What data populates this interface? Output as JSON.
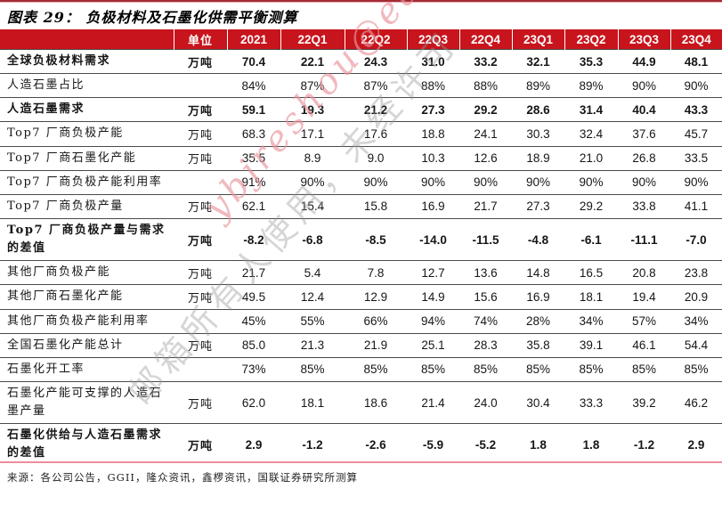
{
  "title": "图表 29： 负极材料及石墨化供需平衡测算",
  "source": "来源：各公司公告，GGII，隆众资讯，鑫椤资讯，国联证券研究所测算",
  "watermark": {
    "email": "ybjreshou@ea",
    "chinese": "邮箱所有人使用，未经许可"
  },
  "colors": {
    "header_red": "#C8141C",
    "rule_dark_red": "#A22C35",
    "rule_pink": "#F08DA0"
  },
  "table": {
    "unit_header": "单位",
    "period_headers": [
      "2021",
      "22Q1",
      "22Q2",
      "22Q3",
      "22Q4",
      "23Q1",
      "23Q2",
      "23Q3",
      "23Q4"
    ],
    "rows": [
      {
        "label": "全球负极材料需求",
        "unit": "万吨",
        "bold": true,
        "tall": false,
        "values": [
          "70.4",
          "22.1",
          "24.3",
          "31.0",
          "33.2",
          "32.1",
          "35.3",
          "44.9",
          "48.1"
        ]
      },
      {
        "label": "人造石墨占比",
        "unit": "",
        "bold": false,
        "tall": false,
        "values": [
          "84%",
          "87%",
          "87%",
          "88%",
          "88%",
          "89%",
          "89%",
          "90%",
          "90%"
        ]
      },
      {
        "label": "人造石墨需求",
        "unit": "万吨",
        "bold": true,
        "tall": false,
        "values": [
          "59.1",
          "19.3",
          "21.2",
          "27.3",
          "29.2",
          "28.6",
          "31.4",
          "40.4",
          "43.3"
        ]
      },
      {
        "label": "Top7 厂商负极产能",
        "unit": "万吨",
        "bold": false,
        "tall": false,
        "values": [
          "68.3",
          "17.1",
          "17.6",
          "18.8",
          "24.1",
          "30.3",
          "32.4",
          "37.6",
          "45.7"
        ]
      },
      {
        "label": "Top7 厂商石墨化产能",
        "unit": "万吨",
        "bold": false,
        "tall": false,
        "values": [
          "35.5",
          "8.9",
          "9.0",
          "10.3",
          "12.6",
          "18.9",
          "21.0",
          "26.8",
          "33.5"
        ]
      },
      {
        "label": "Top7 厂商负极产能利用率",
        "unit": "",
        "bold": false,
        "tall": false,
        "values": [
          "91%",
          "90%",
          "90%",
          "90%",
          "90%",
          "90%",
          "90%",
          "90%",
          "90%"
        ]
      },
      {
        "label": "Top7 厂商负极产量",
        "unit": "万吨",
        "bold": false,
        "tall": false,
        "values": [
          "62.1",
          "15.4",
          "15.8",
          "16.9",
          "21.7",
          "27.3",
          "29.2",
          "33.8",
          "41.1"
        ]
      },
      {
        "label": "Top7 厂商负极产量与需求的差值",
        "unit": "万吨",
        "bold": true,
        "tall": true,
        "values": [
          "-8.2",
          "-6.8",
          "-8.5",
          "-14.0",
          "-11.5",
          "-4.8",
          "-6.1",
          "-11.1",
          "-7.0"
        ]
      },
      {
        "label": "其他厂商负极产能",
        "unit": "万吨",
        "bold": false,
        "tall": false,
        "values": [
          "21.7",
          "5.4",
          "7.8",
          "12.7",
          "13.6",
          "14.8",
          "16.5",
          "20.8",
          "23.8"
        ]
      },
      {
        "label": "其他厂商石墨化产能",
        "unit": "万吨",
        "bold": false,
        "tall": false,
        "values": [
          "49.5",
          "12.4",
          "12.9",
          "14.9",
          "15.6",
          "16.9",
          "18.1",
          "19.4",
          "20.9"
        ]
      },
      {
        "label": "其他厂商负极产能利用率",
        "unit": "",
        "bold": false,
        "tall": false,
        "values": [
          "45%",
          "55%",
          "66%",
          "94%",
          "74%",
          "28%",
          "34%",
          "57%",
          "34%"
        ]
      },
      {
        "label": "全国石墨化产能总计",
        "unit": "万吨",
        "bold": false,
        "tall": false,
        "values": [
          "85.0",
          "21.3",
          "21.9",
          "25.1",
          "28.3",
          "35.8",
          "39.1",
          "46.1",
          "54.4"
        ]
      },
      {
        "label": "石墨化开工率",
        "unit": "",
        "bold": false,
        "tall": false,
        "values": [
          "73%",
          "85%",
          "85%",
          "85%",
          "85%",
          "85%",
          "85%",
          "85%",
          "85%"
        ]
      },
      {
        "label": "石墨化产能可支撑的人造石墨产量",
        "unit": "万吨",
        "bold": false,
        "tall": true,
        "values": [
          "62.0",
          "18.1",
          "18.6",
          "21.4",
          "24.0",
          "30.4",
          "33.3",
          "39.2",
          "46.2"
        ]
      },
      {
        "label": "石墨化供给与人造石墨需求的差值",
        "unit": "万吨",
        "bold": true,
        "tall": true,
        "values": [
          "2.9",
          "-1.2",
          "-2.6",
          "-5.9",
          "-5.2",
          "1.8",
          "1.8",
          "-1.2",
          "2.9"
        ]
      }
    ]
  }
}
